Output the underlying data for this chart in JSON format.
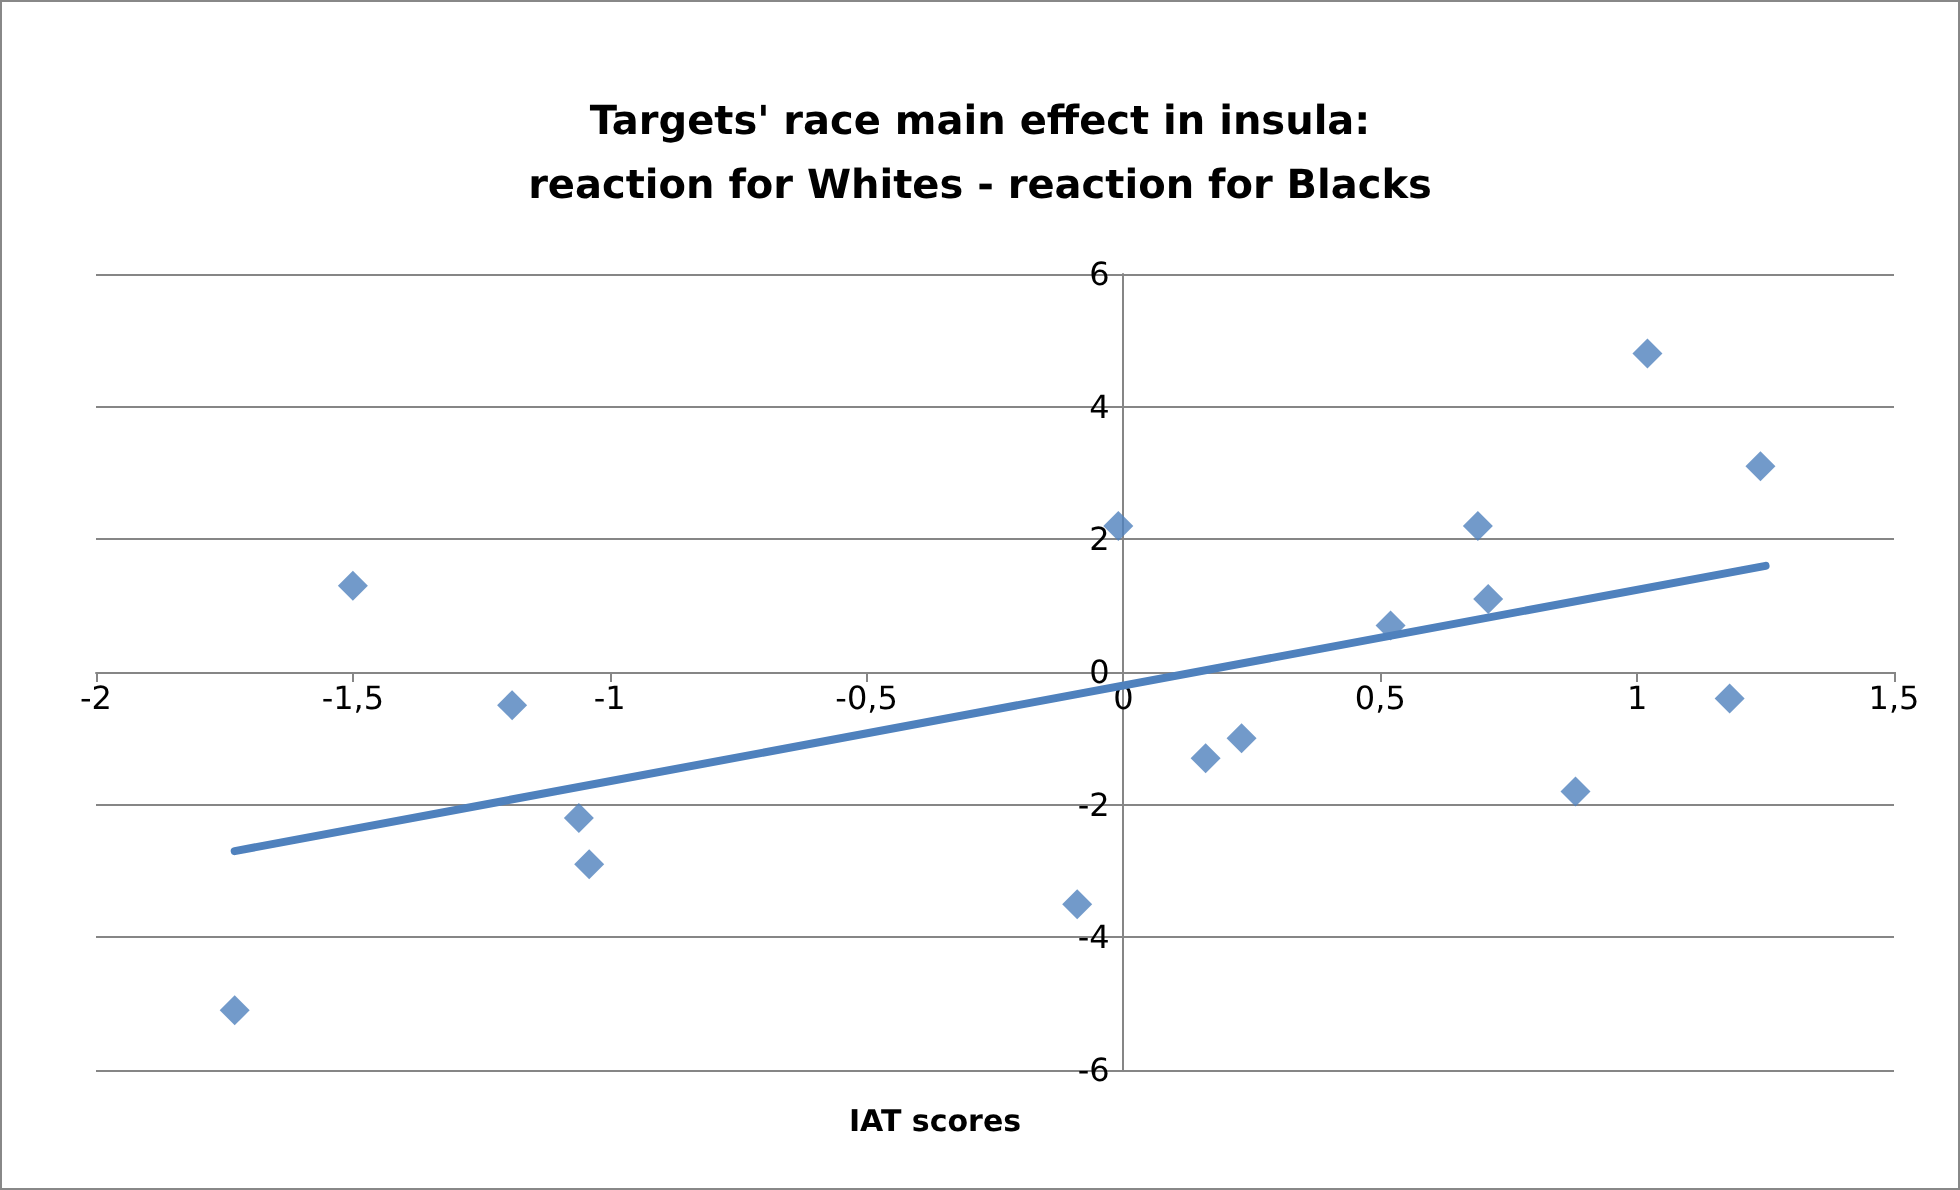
{
  "chart_data": {
    "type": "scatter",
    "title": "Targets' race main effect in insula:\nreaction for Whites - reaction for Blacks",
    "xlabel": "IAT scores",
    "marker": "diamond",
    "grid": "y",
    "xlim": [
      -2,
      1.5
    ],
    "xticks": [
      -2,
      {
        "value": -1.5,
        "label": "-1,5"
      },
      -1,
      {
        "value": -0.5,
        "label": "-0,5"
      },
      0,
      {
        "value": 0.5,
        "label": "0,5"
      },
      1,
      {
        "value": 1.5,
        "label": "1,5"
      }
    ],
    "ylim": [
      -6,
      6
    ],
    "yticks": [
      -6,
      -4,
      -2,
      0,
      2,
      4,
      6
    ],
    "series": [
      {
        "color": "#4f81bd",
        "x": [
          -1.73,
          -1.5,
          -1.19,
          -1.06,
          -1.04,
          -0.09,
          -0.01,
          0.16,
          0.23,
          0.52,
          0.69,
          0.71,
          0.88,
          1.02,
          1.18,
          1.24
        ],
        "values": [
          -5.1,
          1.3,
          -0.5,
          -2.2,
          -2.9,
          -3.5,
          2.2,
          -1.3,
          -1.0,
          0.7,
          2.2,
          1.1,
          -1.8,
          4.8,
          -0.4,
          3.1
        ]
      },
      {
        "type": "line",
        "color": "#4f81bd",
        "marker": "none",
        "x": [
          -1.73,
          1.25
        ],
        "values": [
          -2.7,
          1.6
        ]
      }
    ]
  }
}
